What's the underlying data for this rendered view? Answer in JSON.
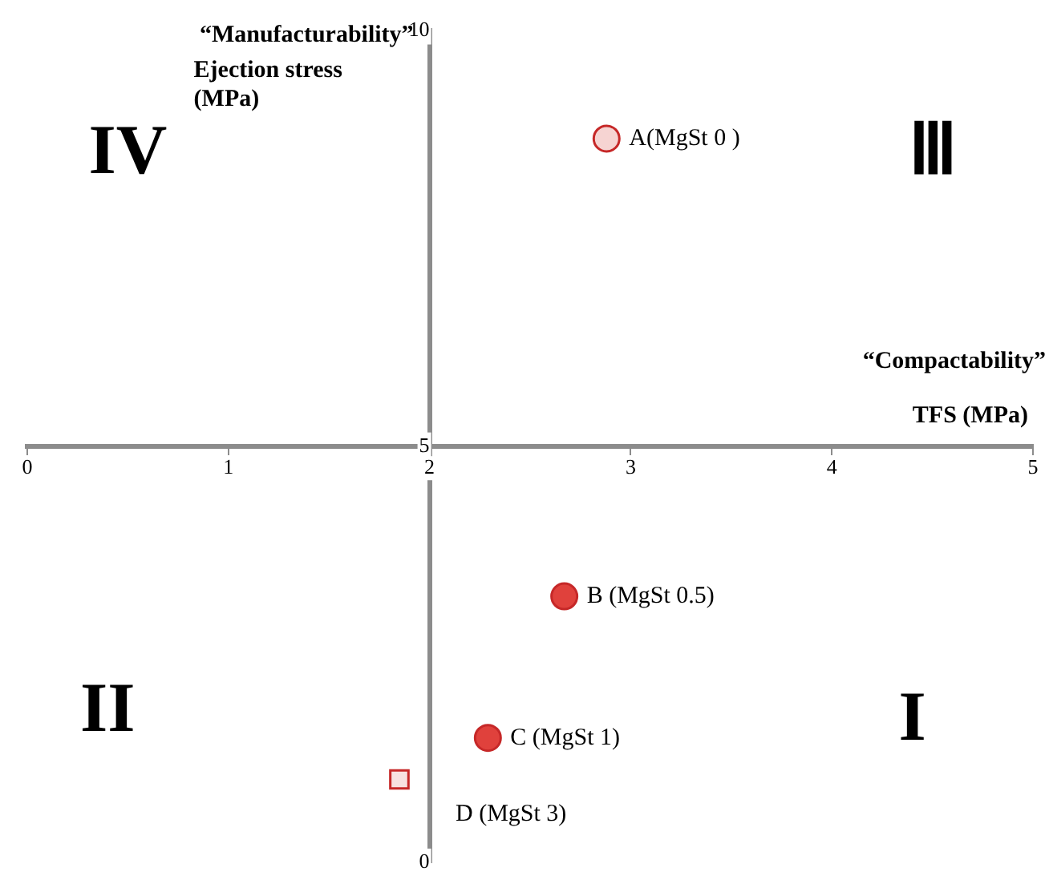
{
  "chart_data": {
    "type": "scatter",
    "xlabel": "TFS (MPa)",
    "ylabel": "Ejection stress (MPa)",
    "xlim": [
      0,
      5
    ],
    "xticks": [
      0,
      1,
      2,
      3,
      4,
      5
    ],
    "ylim": [
      0,
      10
    ],
    "yticks": [
      0,
      5,
      10
    ],
    "grid": false,
    "legend": false,
    "annotations": [
      "“Manufacturability”",
      "“Compactability”",
      "IV",
      "Ⅲ",
      "II",
      "I"
    ],
    "series": [
      {
        "name": "A(MgSt 0 )",
        "color": "#f6d4d2",
        "marker": "circle",
        "x": [
          2.88
        ],
        "values": [
          8.7
        ]
      },
      {
        "name": "B (MgSt 0.5)",
        "color": "#e0413c",
        "marker": "circle",
        "x": [
          2.67
        ],
        "values": [
          3.2
        ]
      },
      {
        "name": "C (MgSt 1)",
        "color": "#e0413c",
        "marker": "circle",
        "x": [
          2.29
        ],
        "values": [
          1.5
        ]
      },
      {
        "name": "D (MgSt 3)",
        "color": "#f8e2e1",
        "marker": "square",
        "x": [
          1.85
        ],
        "values": [
          1.0
        ]
      }
    ]
  }
}
